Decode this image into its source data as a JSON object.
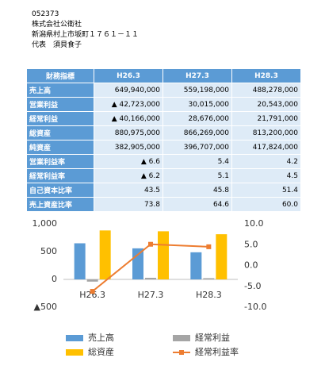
{
  "header": {
    "lines": [
      "052373",
      "株式会社公衛社",
      "新潟県村上市坂町１７６１－１１",
      "代表　須貝食子"
    ]
  },
  "table": {
    "columns": [
      "財務指標",
      "H26.3",
      "H27.3",
      "H28.3"
    ],
    "rows": [
      [
        "売上高",
        "649,940,000",
        "559,198,000",
        "488,278,000"
      ],
      [
        "営業利益",
        "▲ 42,723,000",
        "30,015,000",
        "20,543,000"
      ],
      [
        "経常利益",
        "▲ 40,166,000",
        "28,676,000",
        "21,791,000"
      ],
      [
        "総資産",
        "880,975,000",
        "866,269,000",
        "813,200,000"
      ],
      [
        "純資産",
        "382,905,000",
        "396,707,000",
        "417,824,000"
      ],
      [
        "営業利益率",
        "▲ 6.6",
        "5.4",
        "4.2"
      ],
      [
        "経常利益率",
        "▲ 6.2",
        "5.1",
        "4.5"
      ],
      [
        "自己資本比率",
        "43.5",
        "45.8",
        "51.4"
      ],
      [
        "売上資産比率",
        "73.8",
        "64.6",
        "60.0"
      ]
    ]
  },
  "chart": {
    "type": "bar",
    "categories": [
      "H26.3",
      "H27.3",
      "H28.3"
    ],
    "series": [
      {
        "name": "売上高",
        "color": "#5b9bd5",
        "values": [
          650,
          559,
          488
        ]
      },
      {
        "name": "経常利益",
        "color": "#a5a5a5",
        "values": [
          -40,
          29,
          22
        ]
      },
      {
        "name": "総資産",
        "color": "#ffc000",
        "values": [
          881,
          866,
          813
        ]
      },
      {
        "name": "経常利益率",
        "color": "#ed7d31",
        "type": "line",
        "axis": "y2",
        "values": [
          -6.2,
          5.1,
          4.5
        ]
      }
    ],
    "ylim": [
      -500,
      1000
    ],
    "yticks": [
      {
        "value": -500,
        "label": "▲500"
      },
      0,
      500,
      {
        "value": 1000,
        "label": "1,000"
      }
    ],
    "y2lim": [
      -10,
      10
    ],
    "y2ticks": [
      {
        "value": -10,
        "label": "-10.0"
      },
      {
        "value": -5,
        "label": "-5.0"
      },
      {
        "value": 0,
        "label": "0.0"
      },
      {
        "value": 5,
        "label": "5.0"
      },
      {
        "value": 10,
        "label": "10.0"
      }
    ]
  }
}
